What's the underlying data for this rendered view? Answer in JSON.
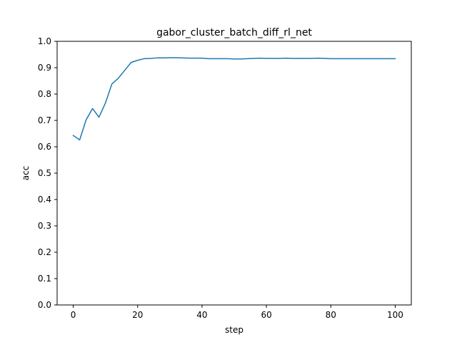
{
  "chart_data": {
    "type": "line",
    "title": "gabor_cluster_batch_diff_rl_net",
    "xlabel": "step",
    "ylabel": "acc",
    "xlim": [
      -5,
      105
    ],
    "ylim": [
      0.0,
      1.0
    ],
    "xticks": [
      0,
      20,
      40,
      60,
      80,
      100
    ],
    "yticks": [
      0.0,
      0.1,
      0.2,
      0.3,
      0.4,
      0.5,
      0.6,
      0.7,
      0.8,
      0.9,
      1.0
    ],
    "xtick_labels": [
      "0",
      "20",
      "40",
      "60",
      "80",
      "100"
    ],
    "ytick_labels": [
      "0.0",
      "0.1",
      "0.2",
      "0.3",
      "0.4",
      "0.5",
      "0.6",
      "0.7",
      "0.8",
      "0.9",
      "1.0"
    ],
    "grid": false,
    "line_color": "#1f77b4",
    "series": [
      {
        "x": [
          0,
          2,
          4,
          6,
          8,
          10,
          12,
          14,
          16,
          18,
          20,
          22,
          24,
          26,
          28,
          30,
          32,
          34,
          36,
          38,
          40,
          42,
          44,
          46,
          48,
          50,
          52,
          54,
          56,
          58,
          60,
          62,
          64,
          66,
          68,
          70,
          72,
          74,
          76,
          78,
          80,
          82,
          84,
          86,
          88,
          90,
          92,
          94,
          96,
          98,
          100
        ],
        "values": [
          0.643,
          0.626,
          0.702,
          0.745,
          0.712,
          0.766,
          0.838,
          0.86,
          0.89,
          0.92,
          0.928,
          0.934,
          0.935,
          0.937,
          0.937,
          0.938,
          0.938,
          0.937,
          0.936,
          0.936,
          0.936,
          0.934,
          0.934,
          0.934,
          0.934,
          0.933,
          0.933,
          0.934,
          0.935,
          0.936,
          0.935,
          0.935,
          0.935,
          0.936,
          0.935,
          0.935,
          0.935,
          0.935,
          0.936,
          0.935,
          0.934,
          0.934,
          0.934,
          0.934,
          0.934,
          0.934,
          0.934,
          0.934,
          0.934,
          0.934,
          0.934
        ]
      }
    ]
  }
}
